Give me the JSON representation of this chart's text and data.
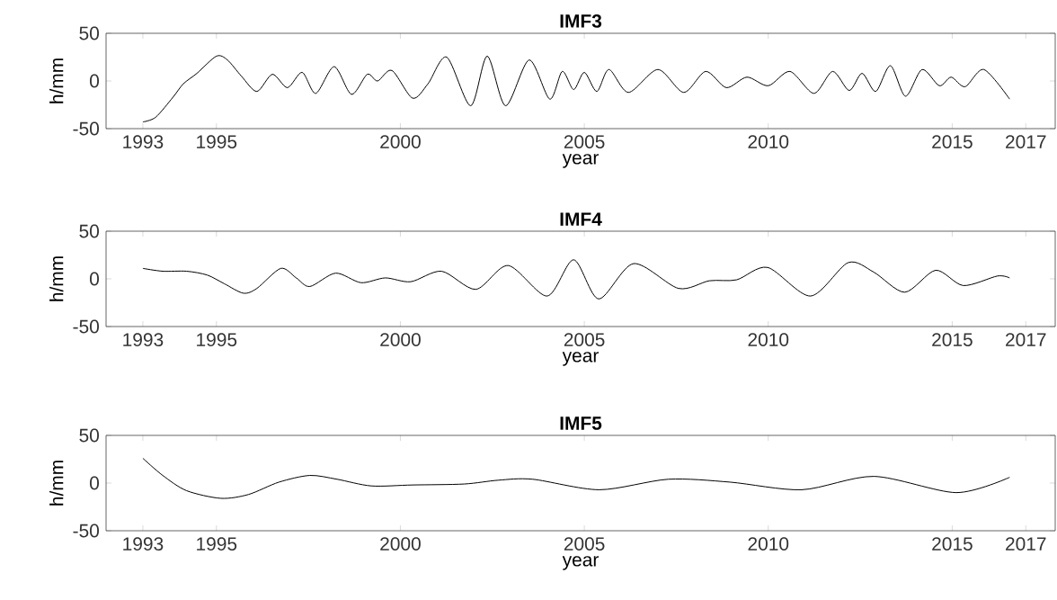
{
  "chart_data": [
    {
      "type": "line",
      "title": "IMF3",
      "xlabel": "year",
      "ylabel": "h/mm",
      "color": "#000000",
      "xlim": [
        1992,
        2017.8
      ],
      "ylim": [
        -50,
        50
      ],
      "xticks": [
        1993,
        1995,
        2000,
        2005,
        2010,
        2015,
        2017
      ],
      "yticks": [
        -50,
        0,
        50
      ],
      "grid": false,
      "x": [
        1993.0,
        1993.35,
        1993.82,
        1994.1,
        1994.47,
        1995.0,
        1995.3,
        1995.68,
        1996.1,
        1996.52,
        1996.93,
        1997.33,
        1997.7,
        1998.2,
        1998.67,
        1999.1,
        1999.38,
        1999.77,
        2000.33,
        2000.75,
        2001.26,
        2001.91,
        2002.36,
        2002.86,
        2003.5,
        2004.06,
        2004.4,
        2004.71,
        2005.0,
        2005.34,
        2005.67,
        2006.2,
        2007.0,
        2007.7,
        2008.3,
        2008.86,
        2009.42,
        2010.0,
        2010.59,
        2011.24,
        2011.75,
        2012.2,
        2012.55,
        2012.92,
        2013.32,
        2013.73,
        2014.18,
        2014.65,
        2014.97,
        2015.35,
        2015.86,
        2016.56
      ],
      "values": [
        -43,
        -38,
        -17,
        -3,
        8,
        26,
        22,
        5,
        -11,
        7,
        -7,
        9,
        -13,
        15,
        -14,
        7,
        0,
        11,
        -18,
        -3,
        25,
        -26,
        26,
        -26,
        22,
        -19,
        10,
        -9,
        9,
        -11,
        12,
        -12,
        12,
        -12,
        10,
        -7,
        4,
        -5,
        10,
        -13,
        10,
        -10,
        8,
        -11,
        16,
        -16,
        12,
        -5,
        4,
        -6,
        12,
        -19
      ]
    },
    {
      "type": "line",
      "title": "IMF4",
      "xlabel": "year",
      "ylabel": "h/mm",
      "color": "#000000",
      "xlim": [
        1992,
        2017.8
      ],
      "ylim": [
        -50,
        50
      ],
      "xticks": [
        1993,
        1995,
        2000,
        2005,
        2010,
        2015,
        2017
      ],
      "yticks": [
        -50,
        0,
        50
      ],
      "grid": false,
      "x": [
        1993.0,
        1993.54,
        1994.19,
        1994.75,
        1995.21,
        1995.73,
        1996.1,
        1996.75,
        1997.17,
        1997.54,
        1998.24,
        1998.93,
        1999.59,
        2000.28,
        2001.12,
        2002.05,
        2002.93,
        2003.99,
        2004.71,
        2005.39,
        2006.34,
        2007.56,
        2008.4,
        2009.14,
        2009.98,
        2011.15,
        2012.17,
        2012.87,
        2013.71,
        2014.55,
        2015.3,
        2016.23,
        2016.56
      ],
      "values": [
        11,
        8,
        8,
        4,
        -5,
        -15,
        -10,
        11,
        1,
        -8,
        6,
        -4,
        1,
        -3,
        8,
        -11,
        14,
        -18,
        20,
        -21,
        16,
        -10,
        -2,
        -1,
        12,
        -18,
        17,
        7,
        -14,
        9,
        -7,
        3,
        1
      ]
    },
    {
      "type": "line",
      "title": "IMF5",
      "xlabel": "year",
      "ylabel": "h/mm",
      "color": "#000000",
      "xlim": [
        1992,
        2017.8
      ],
      "ylim": [
        -50,
        50
      ],
      "xticks": [
        1993,
        1995,
        2000,
        2005,
        2010,
        2015,
        2017
      ],
      "yticks": [
        -50,
        0,
        50
      ],
      "grid": false,
      "x": [
        1993.0,
        1993.54,
        1994.19,
        1995.12,
        1995.87,
        1996.7,
        1997.54,
        1998.28,
        1999.21,
        2000.33,
        2001.73,
        2002.66,
        2003.6,
        2005.41,
        2007.28,
        2008.96,
        2010.91,
        2012.87,
        2015.11,
        2016.56
      ],
      "values": [
        26,
        8,
        -8,
        -16,
        -12,
        1,
        8,
        4,
        -3,
        -2,
        -1,
        3,
        4,
        -7,
        4,
        1,
        -7,
        7,
        -10,
        6
      ]
    }
  ]
}
